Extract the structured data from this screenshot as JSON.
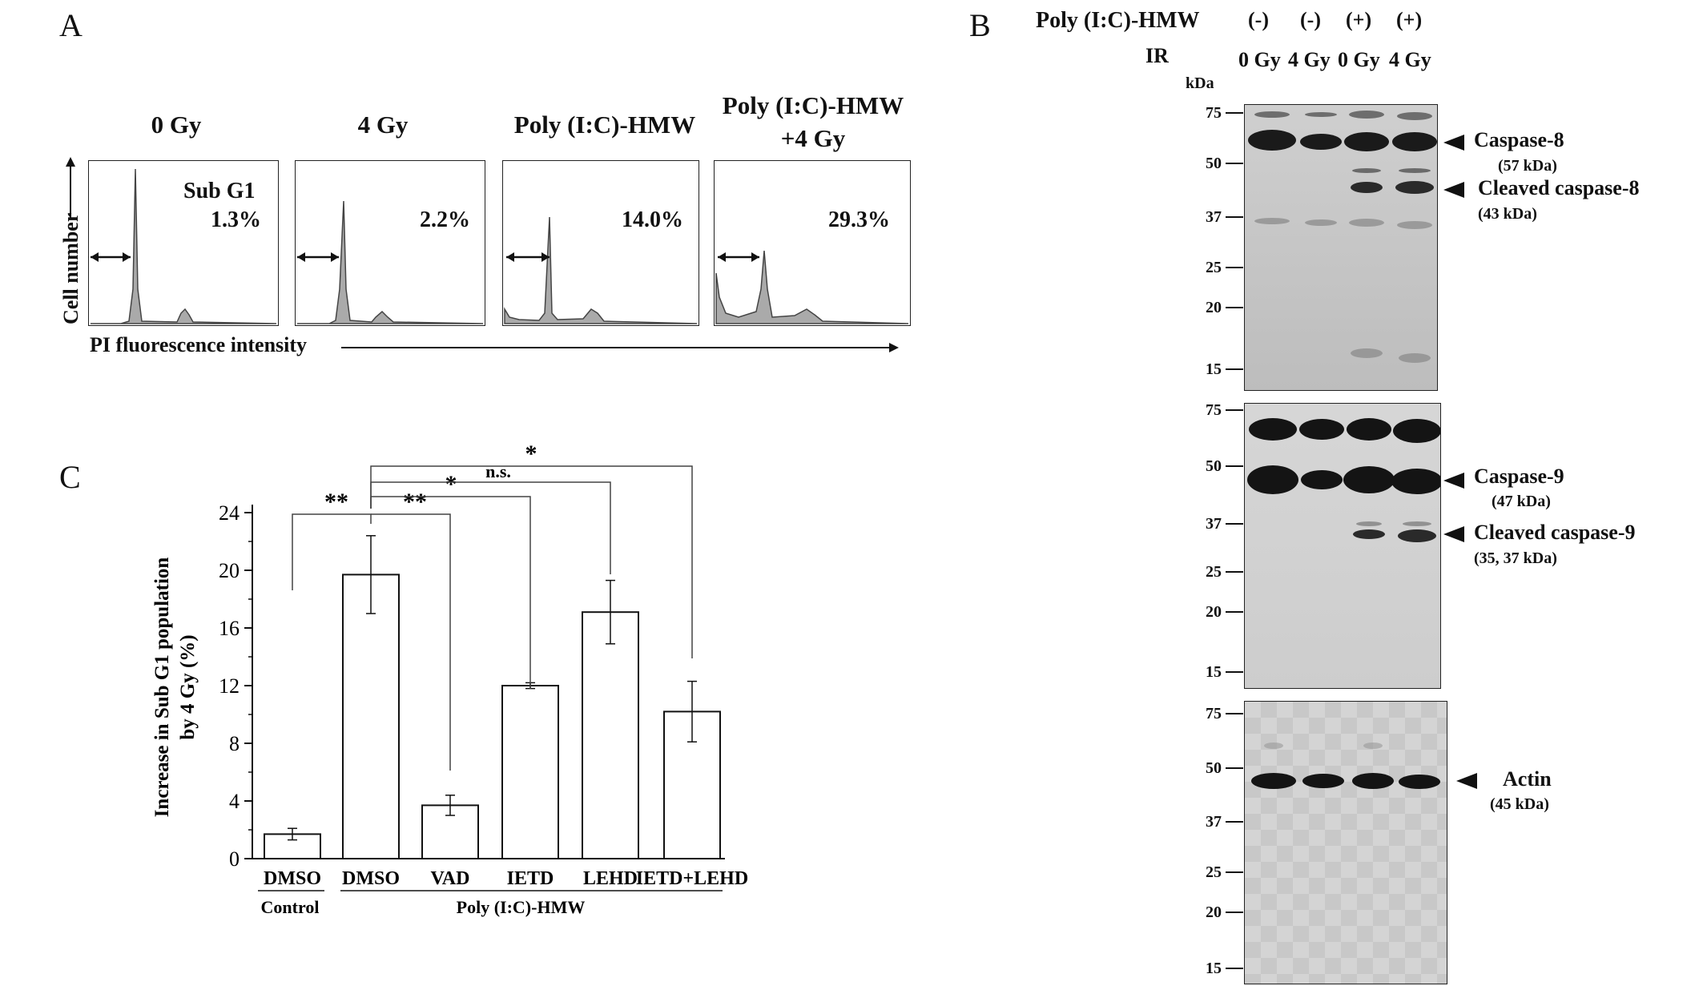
{
  "panel_a": {
    "letter": "A",
    "headers": [
      "0 Gy",
      "4 Gy",
      "Poly (I:C)-HMW",
      "Poly (I:C)-HMW",
      "+4 Gy"
    ],
    "subg1_label": "Sub G1",
    "percentages": [
      "1.3%",
      "2.2%",
      "14.0%",
      "29.3%"
    ],
    "y_axis_label": "Cell number",
    "x_axis_label": "PI fluorescence intensity"
  },
  "panel_b": {
    "letter": "B",
    "treatment_label": "Poly (I:C)-HMW",
    "treatment_values": [
      "(-)",
      "(-)",
      "(+)",
      "(+)"
    ],
    "ir_label": "IR",
    "ir_values": [
      "0 Gy",
      "4 Gy",
      "0 Gy",
      "4 Gy"
    ],
    "kda_unit": "kDa",
    "ladder": [
      "75",
      "50",
      "37",
      "25",
      "20",
      "15"
    ],
    "annotations": {
      "casp8": "Caspase-8",
      "casp8_kda": "(57 kDa)",
      "ccasp8": "Cleaved caspase-8",
      "ccasp8_kda": "(43 kDa)",
      "casp9": "Caspase-9",
      "casp9_kda": "(47 kDa)",
      "ccasp9": "Cleaved caspase-9",
      "ccasp9_kda": "(35, 37 kDa)",
      "actin": "Actin",
      "actin_kda": "(45 kDa)"
    }
  },
  "panel_c": {
    "letter": "C",
    "group_control": "Control",
    "group_poly": "Poly (I:C)-HMW",
    "significance": [
      "**",
      "**",
      "*",
      "n.s.",
      "*"
    ]
  },
  "chart_data": {
    "type": "bar",
    "categories": [
      "DMSO",
      "DMSO",
      "VAD",
      "IETD",
      "LEHD",
      "IETD+LEHD"
    ],
    "values": [
      1.7,
      19.7,
      3.7,
      12.0,
      17.1,
      10.2
    ],
    "errors": [
      0.4,
      2.7,
      0.7,
      0.2,
      2.2,
      2.1
    ],
    "ylabel": "Increase in Sub G1 population by 4 Gy (%)",
    "yticks": [
      "0",
      "4",
      "8",
      "12",
      "16",
      "20",
      "24"
    ],
    "ylim": [
      0,
      24
    ],
    "grid": false
  }
}
